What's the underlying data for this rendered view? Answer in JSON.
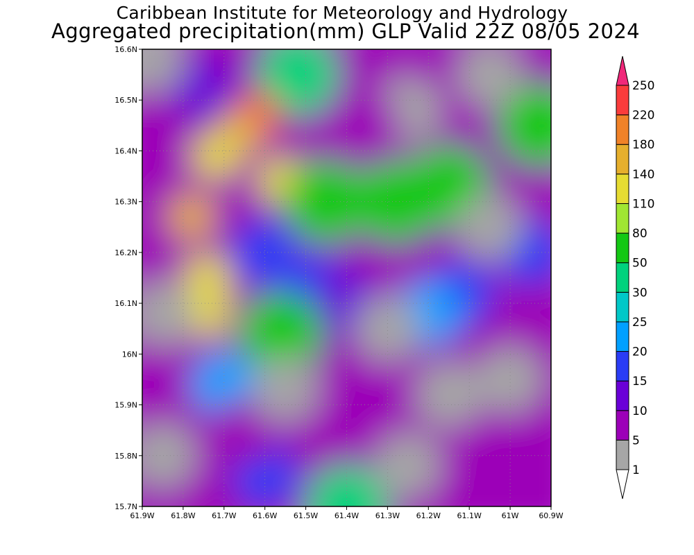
{
  "header": {
    "title": "Caribbean Institute for Meteorology and Hydrology",
    "subtitle": "Aggregated precipitation(mm) GLP Valid 22Z 08/05 2024"
  },
  "map": {
    "lon_range": [
      -61.9,
      -60.9
    ],
    "lat_range": [
      15.7,
      16.6
    ],
    "lon_ticks": [
      {
        "value": -61.9,
        "label": "61.9W"
      },
      {
        "value": -61.8,
        "label": "61.8W"
      },
      {
        "value": -61.7,
        "label": "61.7W"
      },
      {
        "value": -61.6,
        "label": "61.6W"
      },
      {
        "value": -61.5,
        "label": "61.5W"
      },
      {
        "value": -61.4,
        "label": "61.4W"
      },
      {
        "value": -61.3,
        "label": "61.3W"
      },
      {
        "value": -61.2,
        "label": "61.2W"
      },
      {
        "value": -61.1,
        "label": "61.1W"
      },
      {
        "value": -61.0,
        "label": "61W"
      },
      {
        "value": -60.9,
        "label": "60.9W"
      }
    ],
    "lat_ticks": [
      {
        "value": 15.7,
        "label": "15.7N"
      },
      {
        "value": 15.8,
        "label": "15.8N"
      },
      {
        "value": 15.9,
        "label": "15.9N"
      },
      {
        "value": 16.0,
        "label": "16N"
      },
      {
        "value": 16.1,
        "label": "16.1N"
      },
      {
        "value": 16.2,
        "label": "16.2N"
      },
      {
        "value": 16.3,
        "label": "16.3N"
      },
      {
        "value": 16.4,
        "label": "16.4N"
      },
      {
        "value": 16.5,
        "label": "16.5N"
      },
      {
        "value": 16.6,
        "label": "16.6N"
      }
    ],
    "grid": true,
    "colorbar": [
      {
        "label": "1",
        "color": "#ffffff"
      },
      {
        "label": "5",
        "color": "#a6a6a6"
      },
      {
        "label": "10",
        "color": "#9c00b8"
      },
      {
        "label": "15",
        "color": "#6a00d8"
      },
      {
        "label": "20",
        "color": "#2a3cf5"
      },
      {
        "label": "25",
        "color": "#00a0ff"
      },
      {
        "label": "30",
        "color": "#00c8c8"
      },
      {
        "label": "50",
        "color": "#00d27d"
      },
      {
        "label": "80",
        "color": "#14c814"
      },
      {
        "label": "110",
        "color": "#a0e632"
      },
      {
        "label": "140",
        "color": "#e6dc32"
      },
      {
        "label": "180",
        "color": "#e6af2d"
      },
      {
        "label": "220",
        "color": "#f08228"
      },
      {
        "label": "250",
        "color": "#fa3c3c"
      },
      {
        "label": "",
        "color": "#f0287a"
      }
    ],
    "precip_field": [
      {
        "lon": -61.88,
        "lat": 16.45,
        "value": 8
      },
      {
        "lon": -61.75,
        "lat": 16.52,
        "value": 12
      },
      {
        "lon": -61.52,
        "lat": 16.55,
        "value": 35
      },
      {
        "lon": -61.62,
        "lat": 16.47,
        "value": 240
      },
      {
        "lon": -61.66,
        "lat": 16.44,
        "value": 160
      },
      {
        "lon": -61.72,
        "lat": 16.39,
        "value": 120
      },
      {
        "lon": -61.56,
        "lat": 16.34,
        "value": 120
      },
      {
        "lon": -61.78,
        "lat": 16.27,
        "value": 150
      },
      {
        "lon": -61.74,
        "lat": 16.15,
        "value": 115
      },
      {
        "lon": -61.74,
        "lat": 16.08,
        "value": 120
      },
      {
        "lon": -61.6,
        "lat": 16.2,
        "value": 15
      },
      {
        "lon": -61.48,
        "lat": 16.13,
        "value": 17
      },
      {
        "lon": -61.4,
        "lat": 16.1,
        "value": 14
      },
      {
        "lon": -61.56,
        "lat": 16.04,
        "value": 55
      },
      {
        "lon": -61.45,
        "lat": 16.3,
        "value": 55
      },
      {
        "lon": -61.28,
        "lat": 16.3,
        "value": 60
      },
      {
        "lon": -61.15,
        "lat": 16.33,
        "value": 55
      },
      {
        "lon": -60.93,
        "lat": 16.45,
        "value": 55
      },
      {
        "lon": -61.12,
        "lat": 16.12,
        "value": 18
      },
      {
        "lon": -61.2,
        "lat": 16.08,
        "value": 22
      },
      {
        "lon": -60.95,
        "lat": 16.2,
        "value": 15
      },
      {
        "lon": -61.7,
        "lat": 15.94,
        "value": 22
      },
      {
        "lon": -61.6,
        "lat": 15.76,
        "value": 15
      },
      {
        "lon": -61.4,
        "lat": 15.7,
        "value": 45
      },
      {
        "lon": -61.65,
        "lat": 15.85,
        "value": 9
      },
      {
        "lon": -61.2,
        "lat": 15.85,
        "value": 7
      },
      {
        "lon": -60.95,
        "lat": 15.78,
        "value": 7
      },
      {
        "lon": -61.3,
        "lat": 16.05,
        "value": 4
      },
      {
        "lon": -61.15,
        "lat": 15.92,
        "value": 3
      },
      {
        "lon": -61.85,
        "lat": 15.8,
        "value": 2
      },
      {
        "lon": -61.25,
        "lat": 15.78,
        "value": 2
      },
      {
        "lon": -61.0,
        "lat": 15.95,
        "value": 2
      },
      {
        "lon": -61.55,
        "lat": 15.93,
        "value": 3
      },
      {
        "lon": -61.05,
        "lat": 16.55,
        "value": 2
      },
      {
        "lon": -61.25,
        "lat": 16.48,
        "value": 3
      },
      {
        "lon": -61.85,
        "lat": 16.08,
        "value": 4
      },
      {
        "lon": -61.05,
        "lat": 16.25,
        "value": 4
      },
      {
        "lon": -61.35,
        "lat": 16.45,
        "value": 9
      },
      {
        "lon": -61.88,
        "lat": 16.58,
        "value": 4
      }
    ]
  }
}
